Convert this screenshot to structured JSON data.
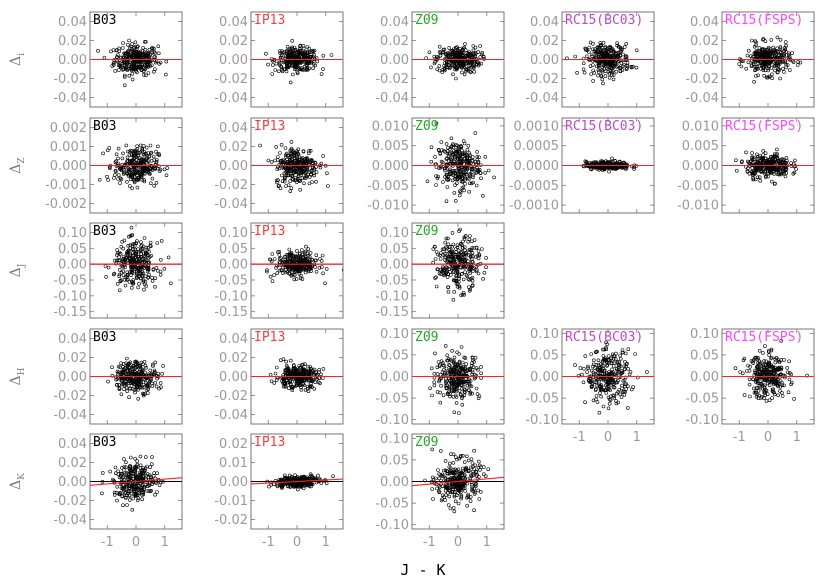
{
  "chart_data": {
    "type": "scatter",
    "x_label": "J - K",
    "x_range": [
      -1.6,
      1.6
    ],
    "x_ticks": [
      "-1",
      "0",
      "1"
    ],
    "columns": [
      {
        "name": "B03",
        "color": "#000000"
      },
      {
        "name": "IP13",
        "color": "#ff3b3b"
      },
      {
        "name": "Z09",
        "color": "#22a822"
      },
      {
        "name": "RC15(BC03)",
        "color": "#c048c8"
      },
      {
        "name": "RC15(FSPS)",
        "color": "#ff44ff"
      }
    ],
    "rows": [
      {
        "symbol": "Δ",
        "subscript": "i"
      },
      {
        "symbol": "Δ",
        "subscript": "Z"
      },
      {
        "symbol": "Δ",
        "subscript": "J"
      },
      {
        "symbol": "Δ",
        "subscript": "H"
      },
      {
        "symbol": "Δ",
        "subscript": "K"
      }
    ],
    "panels": [
      {
        "row": 0,
        "col": 0,
        "ylim": [
          -0.05,
          0.05
        ],
        "yticks": [
          "0.04",
          "0.02",
          "0.00",
          "-0.02",
          "-0.04"
        ],
        "spread": 0.008,
        "slope": 0
      },
      {
        "row": 0,
        "col": 1,
        "ylim": [
          -0.05,
          0.05
        ],
        "yticks": [
          "0.04",
          "0.02",
          "0.00",
          "-0.02",
          "-0.04"
        ],
        "spread": 0.006,
        "slope": 0
      },
      {
        "row": 0,
        "col": 2,
        "ylim": [
          -0.05,
          0.05
        ],
        "yticks": [
          "0.04",
          "0.02",
          "0.00",
          "-0.02",
          "-0.04"
        ],
        "spread": 0.007,
        "slope": 0
      },
      {
        "row": 0,
        "col": 3,
        "ylim": [
          -0.05,
          0.05
        ],
        "yticks": [
          "0.04",
          "0.02",
          "0.00",
          "-0.02",
          "-0.04"
        ],
        "spread": 0.008,
        "slope": 0
      },
      {
        "row": 0,
        "col": 4,
        "ylim": [
          -0.05,
          0.05
        ],
        "yticks": [
          "0.04",
          "0.02",
          "0.00",
          "-0.02",
          "-0.04"
        ],
        "spread": 0.008,
        "slope": 0
      },
      {
        "row": 1,
        "col": 0,
        "ylim": [
          -0.0025,
          0.0025
        ],
        "yticks": [
          "0.002",
          "0.001",
          "0.000",
          "-0.001",
          "-0.002"
        ],
        "spread": 0.0005,
        "slope": 0
      },
      {
        "row": 1,
        "col": 1,
        "ylim": [
          -0.05,
          0.05
        ],
        "yticks": [
          "0.04",
          "0.02",
          "0.00",
          "-0.02",
          "-0.04"
        ],
        "spread": 0.01,
        "slope": 0
      },
      {
        "row": 1,
        "col": 2,
        "ylim": [
          -0.012,
          0.012
        ],
        "yticks": [
          "0.010",
          "0.005",
          "0.000",
          "-0.005",
          "-0.010"
        ],
        "spread": 0.003,
        "slope": 0
      },
      {
        "row": 1,
        "col": 3,
        "ylim": [
          -0.0012,
          0.0012
        ],
        "yticks": [
          "0.0010",
          "0.0005",
          "0.0000",
          "-0.0005",
          "-0.0010"
        ],
        "spread": 5e-05,
        "slope": 0
      },
      {
        "row": 1,
        "col": 4,
        "ylim": [
          -0.012,
          0.012
        ],
        "yticks": [
          "0.010",
          "0.005",
          "0.000",
          "-0.005",
          "-0.010"
        ],
        "spread": 0.0015,
        "slope": 0
      },
      {
        "row": 2,
        "col": 0,
        "ylim": [
          -0.17,
          0.13
        ],
        "yticks": [
          "0.10",
          "0.05",
          "0.00",
          "-0.05",
          "-0.10",
          "-0.15"
        ],
        "spread": 0.035,
        "slope": 0
      },
      {
        "row": 2,
        "col": 1,
        "ylim": [
          -0.17,
          0.13
        ],
        "yticks": [
          "0.10",
          "0.05",
          "0.00",
          "-0.05",
          "-0.10",
          "-0.15"
        ],
        "spread": 0.02,
        "slope": 0
      },
      {
        "row": 2,
        "col": 2,
        "ylim": [
          -0.17,
          0.13
        ],
        "yticks": [
          "0.10",
          "0.05",
          "0.00",
          "-0.05",
          "-0.10",
          "-0.15"
        ],
        "spread": 0.04,
        "slope": 0
      },
      {
        "row": 3,
        "col": 0,
        "ylim": [
          -0.05,
          0.05
        ],
        "yticks": [
          "0.04",
          "0.02",
          "0.00",
          "-0.02",
          "-0.04"
        ],
        "spread": 0.008,
        "slope": 0
      },
      {
        "row": 3,
        "col": 1,
        "ylim": [
          -0.05,
          0.05
        ],
        "yticks": [
          "0.04",
          "0.02",
          "0.00",
          "-0.02",
          "-0.04"
        ],
        "spread": 0.006,
        "slope": 0
      },
      {
        "row": 3,
        "col": 2,
        "ylim": [
          -0.11,
          0.11
        ],
        "yticks": [
          "0.10",
          "0.05",
          "0.00",
          "-0.05",
          "-0.10"
        ],
        "spread": 0.025,
        "slope": 0
      },
      {
        "row": 3,
        "col": 3,
        "ylim": [
          -0.11,
          0.11
        ],
        "yticks": [
          "0.10",
          "0.05",
          "0.00",
          "-0.05",
          "-0.10"
        ],
        "spread": 0.03,
        "slope": 0
      },
      {
        "row": 3,
        "col": 4,
        "ylim": [
          -0.11,
          0.11
        ],
        "yticks": [
          "0.10",
          "0.05",
          "0.00",
          "-0.05",
          "-0.10"
        ],
        "spread": 0.025,
        "slope": 0
      },
      {
        "row": 4,
        "col": 0,
        "ylim": [
          -0.05,
          0.05
        ],
        "yticks": [
          "0.04",
          "0.02",
          "0.00",
          "-0.02",
          "-0.04"
        ],
        "spread": 0.01,
        "slope": 0.0025
      },
      {
        "row": 4,
        "col": 1,
        "ylim": [
          -0.025,
          0.025
        ],
        "yticks": [
          "0.02",
          "0.01",
          "0.00",
          "-0.01",
          "-0.02"
        ],
        "spread": 0.0015,
        "slope": 0.0008
      },
      {
        "row": 4,
        "col": 2,
        "ylim": [
          -0.11,
          0.11
        ],
        "yticks": [
          "0.10",
          "0.05",
          "0.00",
          "-0.05",
          "-0.10"
        ],
        "spread": 0.025,
        "slope": 0.006
      }
    ]
  }
}
